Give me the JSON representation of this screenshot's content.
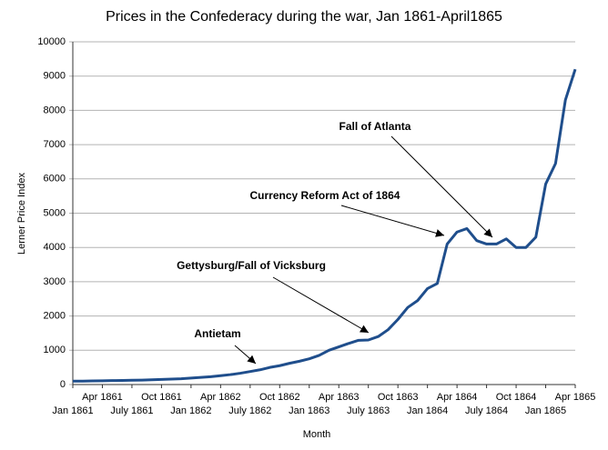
{
  "chart_data": {
    "type": "line",
    "title": "Prices in the Confederacy during the war, Jan 1861-April1865",
    "x_label": "Month",
    "y_label": "Lerner Price Index",
    "categories": [
      "Jan 1861",
      null,
      null,
      "Apr 1861",
      null,
      null,
      "July 1861",
      null,
      null,
      "Oct 1861",
      null,
      null,
      "Jan 1862",
      null,
      null,
      "Apr 1862",
      null,
      null,
      "July 1862",
      null,
      null,
      "Oct 1862",
      null,
      null,
      "Jan 1863",
      null,
      null,
      "Apr 1863",
      null,
      null,
      "July 1863",
      null,
      null,
      "Oct 1863",
      null,
      null,
      "Jan 1864",
      null,
      null,
      "Apr 1864",
      null,
      null,
      "July 1864",
      null,
      null,
      "Oct 1864",
      null,
      null,
      "Jan 1865",
      null,
      null,
      "Apr 1865"
    ],
    "series": [
      {
        "name": "Lerner Price Index",
        "color": "#1f4e8c",
        "values": [
          100,
          100,
          105,
          110,
          115,
          120,
          125,
          130,
          140,
          150,
          160,
          170,
          190,
          210,
          230,
          260,
          290,
          330,
          380,
          430,
          500,
          550,
          620,
          680,
          750,
          850,
          1000,
          1100,
          1200,
          1290,
          1300,
          1400,
          1600,
          1900,
          2250,
          2450,
          2800,
          2950,
          4100,
          4450,
          4550,
          4200,
          4100,
          4100,
          4250,
          4000,
          4000,
          4300,
          5850,
          6450,
          8300,
          9200
        ]
      }
    ],
    "ylim": [
      0,
      10000
    ],
    "yticks": [
      0,
      1000,
      2000,
      3000,
      4000,
      5000,
      6000,
      7000,
      8000,
      9000,
      10000
    ],
    "grid": true,
    "annotations": [
      "Antietam",
      "Gettysburg/Fall of Vicksburg",
      "Currency Reform Act of 1864",
      "Fall of Atlanta"
    ]
  }
}
